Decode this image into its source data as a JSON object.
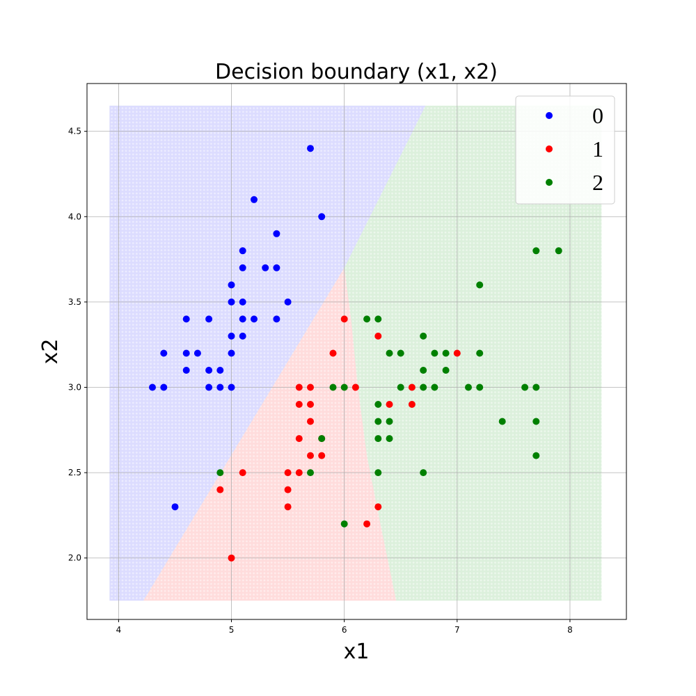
{
  "chart_data": {
    "type": "scatter",
    "title": "Decision boundary (x1, x2)",
    "xlabel": "x1",
    "ylabel": "x2",
    "xlim": [
      3.72,
      8.5
    ],
    "ylim": [
      1.64,
      4.78
    ],
    "xticks": [
      "4",
      "5",
      "6",
      "7",
      "8"
    ],
    "yticks": [
      "2.0",
      "2.5",
      "3.0",
      "3.5",
      "4.0",
      "4.5"
    ],
    "grid": true,
    "legend_position": "top-right",
    "decision_regions": {
      "x_range": [
        3.92,
        8.28
      ],
      "y_range": [
        1.75,
        4.65
      ],
      "colors": {
        "0": "#dcdcff",
        "1": "#ffdcdc",
        "2": "#dcf0dc"
      },
      "boundary_0_1": [
        [
          4.22,
          1.75
        ],
        [
          6.0,
          3.7
        ]
      ],
      "boundary_0_2": [
        [
          6.0,
          3.7
        ],
        [
          6.72,
          4.65
        ]
      ],
      "boundary_1_2": [
        [
          6.0,
          3.7
        ],
        [
          6.06,
          3.4
        ],
        [
          6.12,
          3.0
        ],
        [
          6.2,
          2.6
        ],
        [
          6.32,
          2.2
        ],
        [
          6.46,
          1.75
        ]
      ]
    },
    "series": [
      {
        "name": "0",
        "color": "#0000ff",
        "points": [
          [
            5.7,
            4.4
          ],
          [
            5.2,
            4.1
          ],
          [
            5.8,
            4.0
          ],
          [
            5.4,
            3.9
          ],
          [
            5.1,
            3.8
          ],
          [
            5.1,
            3.7
          ],
          [
            5.3,
            3.7
          ],
          [
            5.4,
            3.7
          ],
          [
            5.0,
            3.6
          ],
          [
            5.0,
            3.5
          ],
          [
            5.1,
            3.5
          ],
          [
            5.5,
            3.5
          ],
          [
            4.6,
            3.4
          ],
          [
            4.8,
            3.4
          ],
          [
            5.1,
            3.4
          ],
          [
            5.2,
            3.4
          ],
          [
            5.4,
            3.4
          ],
          [
            5.0,
            3.3
          ],
          [
            5.1,
            3.3
          ],
          [
            4.4,
            3.2
          ],
          [
            4.6,
            3.2
          ],
          [
            4.7,
            3.2
          ],
          [
            5.0,
            3.2
          ],
          [
            4.6,
            3.1
          ],
          [
            4.8,
            3.1
          ],
          [
            4.9,
            3.1
          ],
          [
            4.3,
            3.0
          ],
          [
            4.4,
            3.0
          ],
          [
            4.8,
            3.0
          ],
          [
            4.9,
            3.0
          ],
          [
            5.0,
            3.0
          ],
          [
            4.5,
            2.3
          ]
        ]
      },
      {
        "name": "1",
        "color": "#ff0000",
        "points": [
          [
            6.0,
            3.4
          ],
          [
            6.3,
            3.3
          ],
          [
            5.9,
            3.2
          ],
          [
            7.0,
            3.2
          ],
          [
            5.6,
            3.0
          ],
          [
            5.7,
            3.0
          ],
          [
            6.1,
            3.0
          ],
          [
            6.6,
            3.0
          ],
          [
            5.6,
            2.9
          ],
          [
            5.7,
            2.9
          ],
          [
            6.4,
            2.9
          ],
          [
            6.6,
            2.9
          ],
          [
            5.7,
            2.8
          ],
          [
            5.6,
            2.7
          ],
          [
            5.8,
            2.7
          ],
          [
            5.7,
            2.6
          ],
          [
            5.8,
            2.6
          ],
          [
            5.1,
            2.5
          ],
          [
            5.5,
            2.5
          ],
          [
            5.6,
            2.5
          ],
          [
            4.9,
            2.4
          ],
          [
            5.5,
            2.4
          ],
          [
            5.5,
            2.3
          ],
          [
            6.3,
            2.3
          ],
          [
            6.2,
            2.2
          ],
          [
            5.0,
            2.0
          ]
        ]
      },
      {
        "name": "2",
        "color": "#008000",
        "points": [
          [
            7.7,
            3.8
          ],
          [
            7.9,
            3.8
          ],
          [
            7.2,
            3.6
          ],
          [
            6.2,
            3.4
          ],
          [
            6.3,
            3.4
          ],
          [
            6.7,
            3.3
          ],
          [
            6.4,
            3.2
          ],
          [
            6.5,
            3.2
          ],
          [
            6.8,
            3.2
          ],
          [
            6.9,
            3.2
          ],
          [
            7.2,
            3.2
          ],
          [
            6.7,
            3.1
          ],
          [
            6.9,
            3.1
          ],
          [
            5.9,
            3.0
          ],
          [
            6.0,
            3.0
          ],
          [
            6.5,
            3.0
          ],
          [
            6.7,
            3.0
          ],
          [
            6.8,
            3.0
          ],
          [
            7.1,
            3.0
          ],
          [
            7.2,
            3.0
          ],
          [
            7.6,
            3.0
          ],
          [
            7.7,
            3.0
          ],
          [
            6.3,
            2.9
          ],
          [
            6.3,
            2.8
          ],
          [
            6.4,
            2.8
          ],
          [
            7.4,
            2.8
          ],
          [
            7.7,
            2.8
          ],
          [
            5.8,
            2.7
          ],
          [
            6.3,
            2.7
          ],
          [
            6.4,
            2.7
          ],
          [
            7.7,
            2.6
          ],
          [
            4.9,
            2.5
          ],
          [
            5.7,
            2.5
          ],
          [
            6.3,
            2.5
          ],
          [
            6.7,
            2.5
          ],
          [
            6.0,
            2.2
          ]
        ]
      }
    ]
  }
}
